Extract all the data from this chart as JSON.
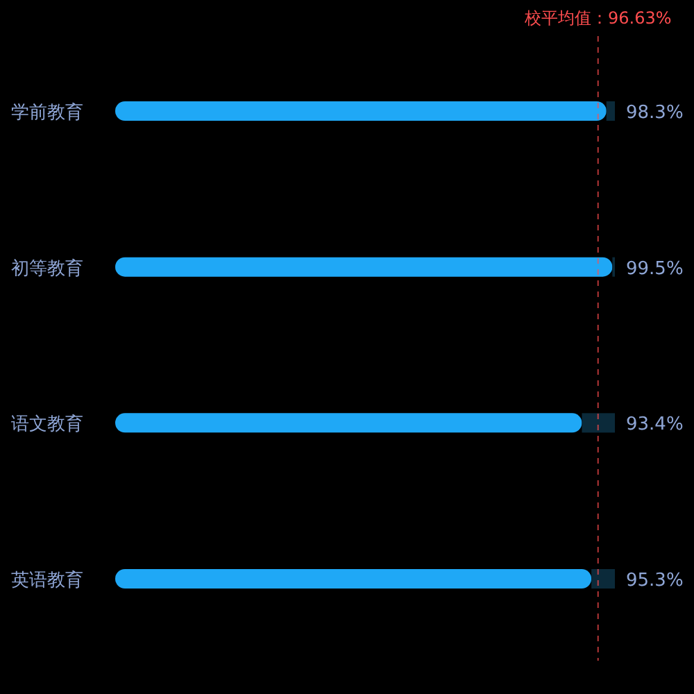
{
  "chart_data": {
    "type": "bar",
    "orientation": "horizontal",
    "categories": [
      "学前教育",
      "初等教育",
      "语文教育",
      "英语教育"
    ],
    "series": [
      {
        "color": "#1fa8f6",
        "values": [
          98.3,
          99.5,
          93.4,
          95.3
        ],
        "value_labels": [
          "98.3%",
          "99.5%",
          "93.4%",
          "95.3%"
        ]
      },
      {
        "color": "#0b2a3a",
        "values": [
          1.7,
          0.5,
          6.6,
          4.7
        ]
      }
    ],
    "stacked": true,
    "xlim": [
      0,
      100
    ],
    "ref_lines": [
      {
        "axis": "x",
        "value": 96.63,
        "label": "校平均值：96.63%",
        "color": "#ff4d4f",
        "line_style": "dashed"
      }
    ]
  }
}
